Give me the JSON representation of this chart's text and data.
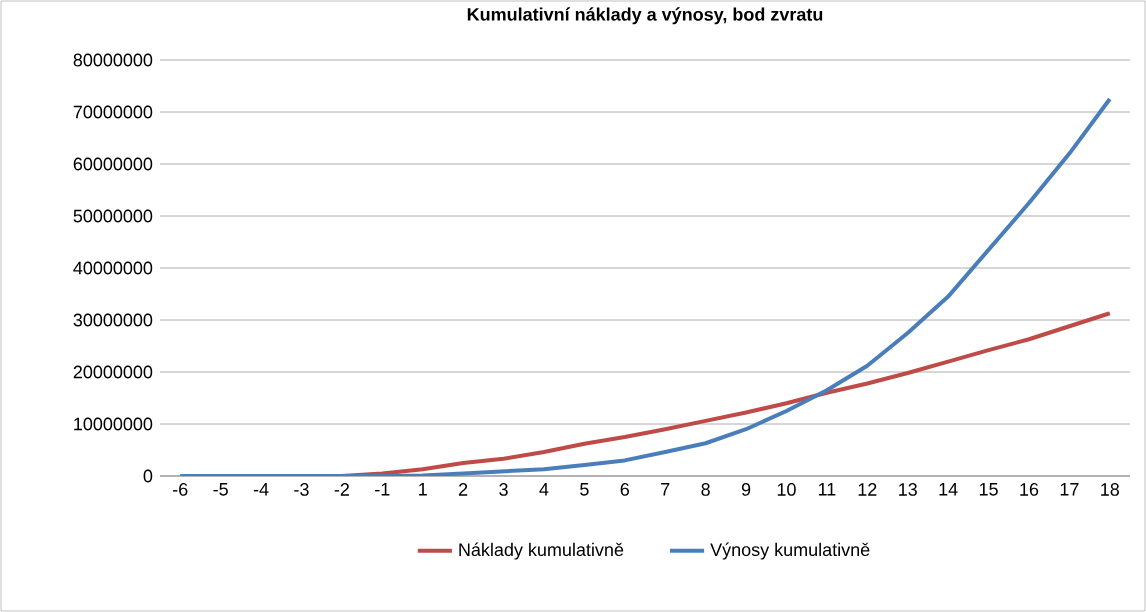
{
  "chart_data": {
    "type": "line",
    "title": "Kumulativní náklady a výnosy, bod zvratu",
    "categories": [
      "-6",
      "-5",
      "-4",
      "-3",
      "-2",
      "-1",
      "1",
      "2",
      "3",
      "4",
      "5",
      "6",
      "7",
      "8",
      "9",
      "10",
      "11",
      "12",
      "13",
      "14",
      "15",
      "16",
      "17",
      "18"
    ],
    "series": [
      {
        "name": "Náklady kumulativně",
        "color": "#be4b48",
        "values": [
          null,
          null,
          null,
          0,
          0,
          500000,
          1300000,
          2500000,
          3300000,
          4600000,
          6200000,
          7500000,
          9000000,
          10600000,
          12200000,
          14000000,
          16000000,
          17800000,
          19800000,
          22000000,
          24200000,
          26300000,
          28800000,
          31300000
        ]
      },
      {
        "name": "Výnosy kumulativně",
        "color": "#4a7ebb",
        "values": [
          0,
          0,
          0,
          0,
          0,
          0,
          100000,
          500000,
          900000,
          1300000,
          2100000,
          3000000,
          4600000,
          6300000,
          9000000,
          12500000,
          16500000,
          21200000,
          27500000,
          34500000,
          43500000,
          52500000,
          62000000,
          72500000
        ]
      }
    ],
    "ylim": [
      0,
      80000000
    ],
    "yticks": [
      0,
      10000000,
      20000000,
      30000000,
      40000000,
      50000000,
      60000000,
      70000000,
      80000000
    ],
    "grid": "y",
    "legend": "bottom",
    "marker": "none",
    "line_style": "solid"
  }
}
